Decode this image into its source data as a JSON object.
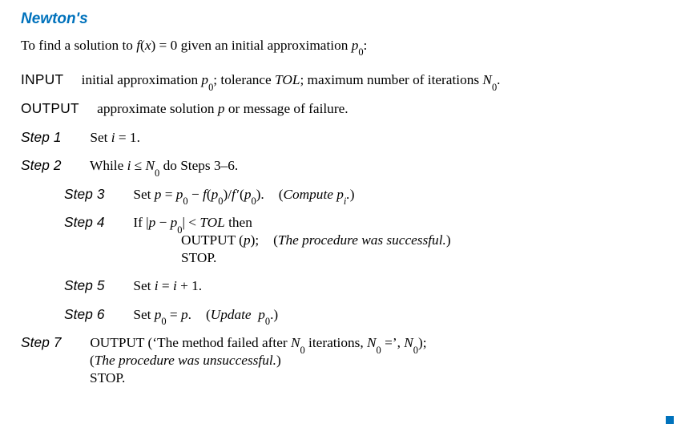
{
  "title_color": "#0072bc",
  "text_color": "#000000",
  "background_color": "#ffffff",
  "title_fontsize_pt": 14,
  "body_fontsize_pt": 13,
  "title": "Newton's",
  "intro_html": "To find a solution to <span class='ital'>f</span>(<span class='ital'>x</span>) = 0 given an initial approximation <span class='ital'>p</span><sub>0</sub>:",
  "input_kw": "INPUT",
  "input_text_html": "initial approximation <span class='ital'>p</span><sub>0</sub>; tolerance <span class='ital'>TOL</span>; maximum number of iterations <span class='ital'>N</span><sub>0</sub>.",
  "output_kw": "OUTPUT",
  "output_text_html": "approximate solution <span class='ital'>p</span> or message of failure.",
  "steps": {
    "s1": {
      "label": "Step 1",
      "body_html": "Set <span class='ital'>i</span> = 1."
    },
    "s2": {
      "label": "Step 2",
      "body_html": "While <span class='ital'>i</span> ≤ <span class='ital'>N</span><sub>0</sub> do Steps 3–6."
    },
    "s3": {
      "label": "Step 3",
      "body_html": "Set <span class='ital'>p</span> = <span class='ital'>p</span><sub>0</sub> − <span class='ital'>f</span>(<span class='ital'>p</span><sub>0</sub>)/<span class='ital'>f</span>&#8202;′(<span class='ital'>p</span><sub>0</sub>).<span class='sp-wide'></span>(<span class='ital'>Compute p<sub>i</sub>.</span>)"
    },
    "s4": {
      "label": "Step 4",
      "line1_html": "If |<span class='ital'>p</span> − <span class='ital'>p</span><sub>0</sub>| &lt; <span class='ital'>TOL</span> then",
      "line2_html": "OUTPUT (<span class='ital'>p</span>);<span class='sp-wide'></span>(<span class='ital'>The procedure was successful.</span>)",
      "line3_html": "STOP."
    },
    "s5": {
      "label": "Step 5",
      "body_html": "Set <span class='ital'>i</span> = <span class='ital'>i</span> + 1."
    },
    "s6": {
      "label": "Step 6",
      "body_html": "Set <span class='ital'>p</span><sub>0</sub> = <span class='ital'>p</span>.<span class='sp-wide'></span>(<span class='ital'>Update&nbsp; p</span><sub>0</sub>.)"
    },
    "s7": {
      "label": "Step 7",
      "line1_html": "OUTPUT (‘The method failed after <span class='ital'>N</span><sub>0</sub> iterations, <span class='ital'>N</span><sub>0</sub> =’, <span class='ital'>N</span><sub>0</sub>);",
      "line2_html": "(<span class='ital'>The procedure was unsuccessful.</span>)",
      "line3_html": "STOP."
    }
  },
  "qed_color": "#0072bc"
}
